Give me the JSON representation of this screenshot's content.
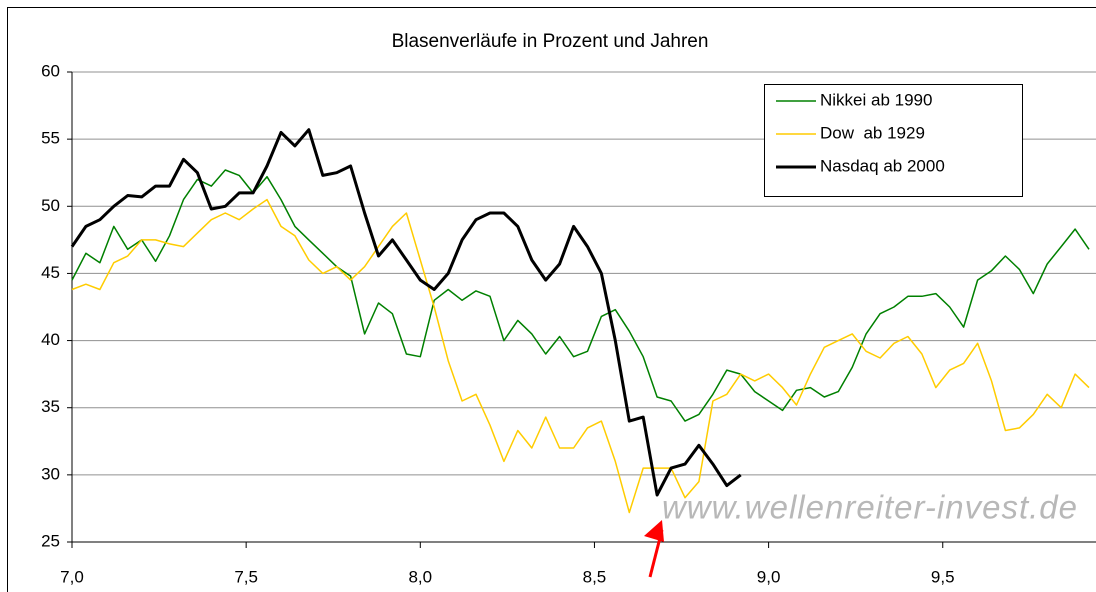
{
  "chart_data": {
    "type": "line",
    "title": "Blasenverläufe in Prozent und Jahren",
    "watermark": "www.wellenreiter-invest.de",
    "x": [
      7.0,
      7.04,
      7.08,
      7.12,
      7.16,
      7.2,
      7.24,
      7.28,
      7.32,
      7.36,
      7.4,
      7.44,
      7.48,
      7.52,
      7.56,
      7.6,
      7.64,
      7.68,
      7.72,
      7.76,
      7.8,
      7.84,
      7.88,
      7.92,
      7.96,
      8.0,
      8.04,
      8.08,
      8.12,
      8.16,
      8.2,
      8.24,
      8.28,
      8.32,
      8.36,
      8.4,
      8.44,
      8.48,
      8.52,
      8.56,
      8.6,
      8.64,
      8.68,
      8.72,
      8.76,
      8.8,
      8.84,
      8.88,
      8.92,
      8.96,
      9.0,
      9.04,
      9.08,
      9.12,
      9.16,
      9.2,
      9.24,
      9.28,
      9.32,
      9.36,
      9.4,
      9.44,
      9.48,
      9.52,
      9.56,
      9.6,
      9.64,
      9.68,
      9.72,
      9.76,
      9.8,
      9.84,
      9.88,
      9.92
    ],
    "series": [
      {
        "name": "Nikkei ab 1990",
        "color": "#008000",
        "line_width": 1.5,
        "values": [
          44.5,
          46.5,
          45.8,
          48.5,
          46.8,
          47.5,
          45.9,
          47.8,
          50.5,
          52,
          51.5,
          52.7,
          52.3,
          51,
          52.2,
          50.5,
          48.5,
          47.5,
          46.5,
          45.5,
          44.8,
          40.5,
          42.8,
          42,
          39,
          38.8,
          43,
          43.8,
          43,
          43.7,
          43.3,
          40,
          41.5,
          40.5,
          39,
          40.3,
          38.8,
          39.2,
          41.8,
          42.3,
          40.7,
          38.8,
          35.8,
          35.5,
          34,
          34.5,
          36,
          37.8,
          37.5,
          36.2,
          35.5,
          34.8,
          36.3,
          36.5,
          35.8,
          36.2,
          38,
          40.5,
          42,
          42.5,
          43.3,
          43.3,
          43.5,
          42.5,
          41,
          44.5,
          45.2,
          46.3,
          45.3,
          43.5,
          45.7,
          47,
          48.3,
          46.8
        ]
      },
      {
        "name": "Dow  ab 1929",
        "color": "#ffcc00",
        "line_width": 1.5,
        "values": [
          43.8,
          44.2,
          43.8,
          45.8,
          46.3,
          47.5,
          47.5,
          47.2,
          47,
          48,
          49,
          49.5,
          49,
          49.8,
          50.5,
          48.5,
          47.8,
          46,
          45,
          45.5,
          44.5,
          45.5,
          47,
          48.5,
          49.5,
          46,
          42.5,
          38.5,
          35.5,
          36,
          33.7,
          31,
          33.3,
          32,
          34.3,
          32,
          32,
          33.5,
          34,
          31,
          27.2,
          30.5,
          30.5,
          30.5,
          28.3,
          29.5,
          35.5,
          36,
          37.5,
          37,
          37.5,
          36.5,
          35.2,
          37.5,
          39.5,
          40,
          40.5,
          39.2,
          38.7,
          39.8,
          40.3,
          39,
          36.5,
          37.8,
          38.3,
          39.8,
          37,
          33.3,
          33.5,
          34.5,
          36,
          35,
          37.5,
          36.5
        ]
      },
      {
        "name": "Nasdaq ab 2000",
        "color": "#000000",
        "line_width": 3,
        "values": [
          47,
          48.5,
          49,
          50,
          50.8,
          50.7,
          51.5,
          51.5,
          53.5,
          52.5,
          49.8,
          50,
          51,
          51,
          53,
          55.5,
          54.5,
          55.7,
          52.3,
          52.5,
          53,
          49.5,
          46.3,
          47.5,
          46,
          44.5,
          43.8,
          45,
          47.5,
          49,
          49.5,
          49.5,
          48.5,
          46,
          44.5,
          45.7,
          48.5,
          47,
          45,
          40,
          34,
          34.3,
          28.5,
          30.5,
          30.8,
          32.2,
          30.8,
          29.2,
          30,
          null,
          null,
          null,
          null,
          null,
          null,
          null,
          null,
          null,
          null,
          null,
          null,
          null,
          null,
          null,
          null,
          null,
          null,
          null,
          null,
          null,
          null,
          null,
          null,
          null
        ]
      }
    ],
    "xlim": [
      7,
      9.94
    ],
    "xticks": [
      {
        "value": 7.0,
        "label": "7,0"
      },
      {
        "value": 7.5,
        "label": "7,5"
      },
      {
        "value": 8.0,
        "label": "8,0"
      },
      {
        "value": 8.5,
        "label": "8,5"
      },
      {
        "value": 9.0,
        "label": "9,0"
      },
      {
        "value": 9.5,
        "label": "9,5"
      }
    ],
    "ylim": [
      25,
      60
    ],
    "yticks": [
      25,
      30,
      35,
      40,
      45,
      50,
      55,
      60
    ],
    "grid": true,
    "legend": "upper right"
  }
}
